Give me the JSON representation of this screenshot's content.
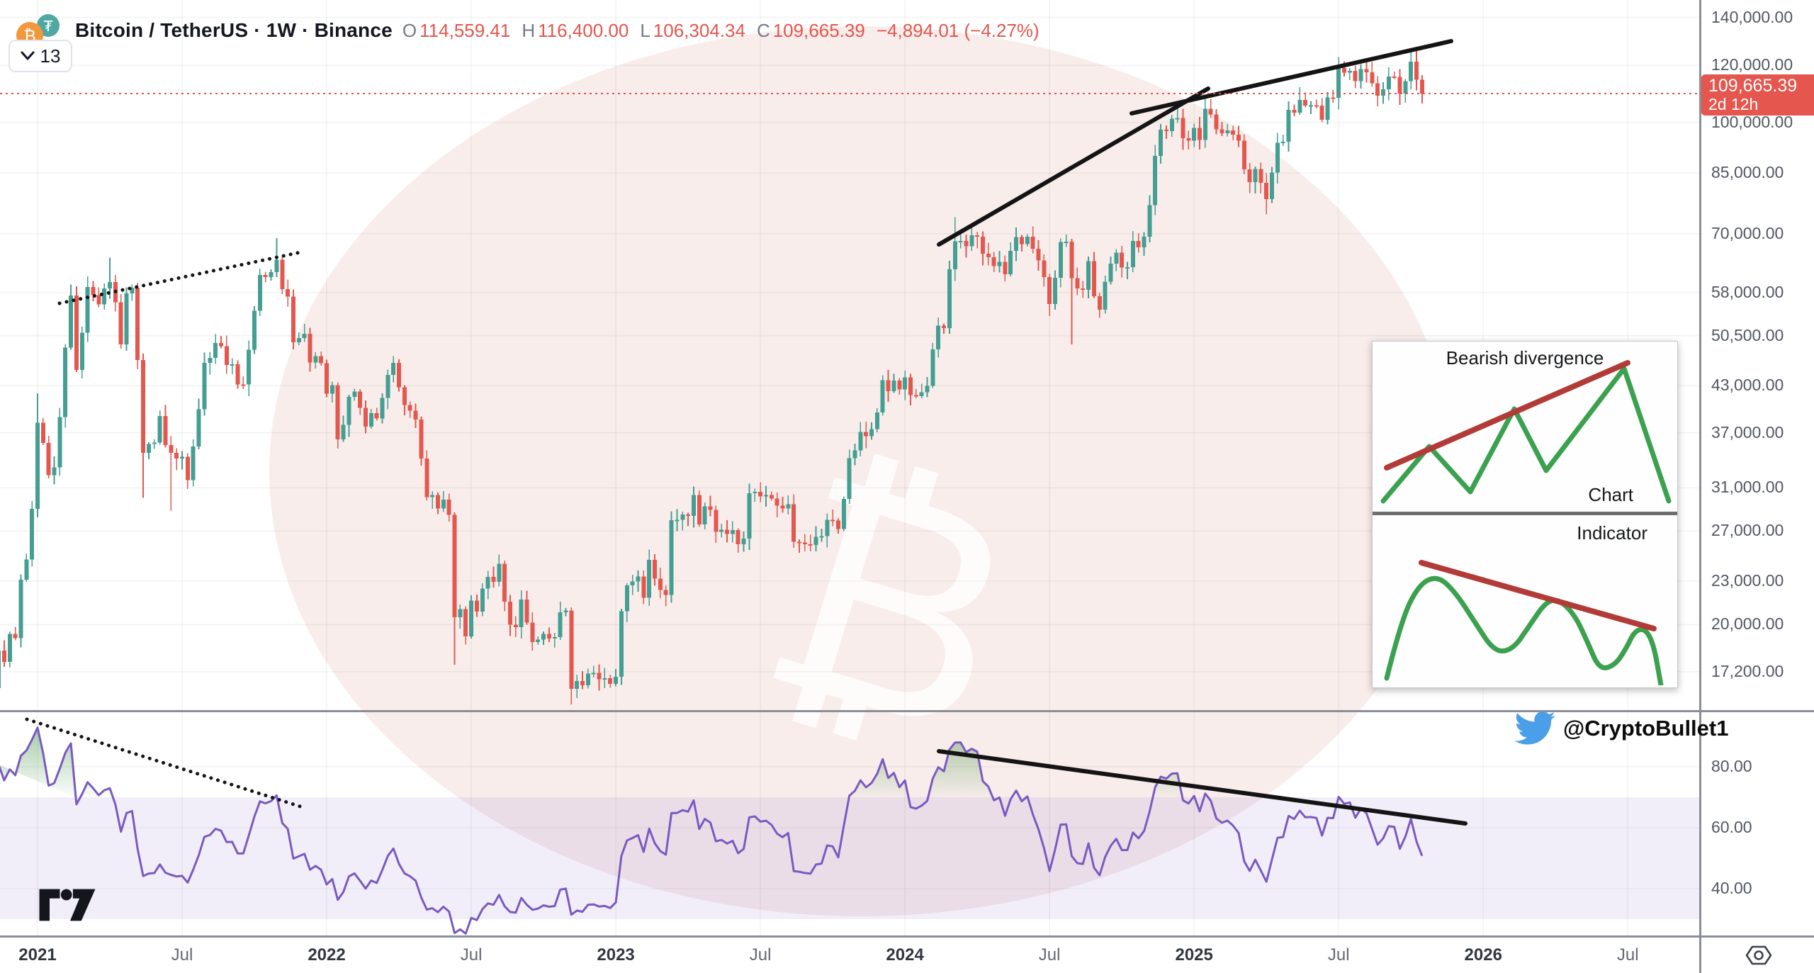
{
  "header": {
    "symbol_title": "Bitcoin / TetherUS · 1W · Binance",
    "ohlc": {
      "o_label": "O",
      "o": "114,559.41",
      "h_label": "H",
      "h": "116,400.00",
      "l_label": "L",
      "l": "106,304.34",
      "c_label": "C",
      "c": "109,665.39",
      "change": "−4,894.01 (−4.27%)"
    }
  },
  "toolbar": {
    "hidden_indicators_count": "13"
  },
  "price_axis": {
    "labels": [
      {
        "text": "140,000.00",
        "value": 140000
      },
      {
        "text": "120,000.00",
        "value": 120000
      },
      {
        "text": "100,000.00",
        "value": 100000
      },
      {
        "text": "85,000.00",
        "value": 85000
      },
      {
        "text": "70,000.00",
        "value": 70000
      },
      {
        "text": "58,000.00",
        "value": 58000
      },
      {
        "text": "50,500.00",
        "value": 50500
      },
      {
        "text": "43,000.00",
        "value": 43000
      },
      {
        "text": "37,000.00",
        "value": 37000
      },
      {
        "text": "31,000.00",
        "value": 31000
      },
      {
        "text": "27,000.00",
        "value": 27000
      },
      {
        "text": "23,000.00",
        "value": 23000
      },
      {
        "text": "20,000.00",
        "value": 20000
      },
      {
        "text": "17,200.00",
        "value": 17200
      }
    ],
    "last_price_badge": {
      "price": "109,665.39",
      "countdown": "2d 12h",
      "value": 109665.39
    }
  },
  "rsi_axis": {
    "labels": [
      {
        "text": "80.00",
        "value": 80
      },
      {
        "text": "60.00",
        "value": 60
      },
      {
        "text": "40.00",
        "value": 40
      }
    ],
    "band": [
      30,
      70
    ]
  },
  "time_axis": {
    "ticks": [
      {
        "label": "2021",
        "week": 7,
        "year": true
      },
      {
        "label": "Jul",
        "week": 33,
        "year": false
      },
      {
        "label": "2022",
        "week": 59,
        "year": true
      },
      {
        "label": "Jul",
        "week": 85,
        "year": false
      },
      {
        "label": "2023",
        "week": 111,
        "year": true
      },
      {
        "label": "Jul",
        "week": 137,
        "year": false
      },
      {
        "label": "2024",
        "week": 163,
        "year": true
      },
      {
        "label": "Jul",
        "week": 189,
        "year": false
      },
      {
        "label": "2025",
        "week": 215,
        "year": true
      },
      {
        "label": "Jul",
        "week": 241,
        "year": false
      },
      {
        "label": "2026",
        "week": 267,
        "year": true
      },
      {
        "label": "Jul",
        "week": 293,
        "year": false
      }
    ]
  },
  "chart_data": {
    "type": "candlestick",
    "title": "Bitcoin / TetherUS weekly with oscillator pane",
    "symbol": "Bitcoin / TetherUS",
    "interval": "1W",
    "exchange": "Binance",
    "price_scale": "logarithmic",
    "ylim": [
      15000,
      145000
    ],
    "weekly_closes_pre": [
      11900,
      11400,
      10220,
      10540,
      10950,
      10670,
      11080,
      11360,
      11750,
      13120,
      13030,
      13780,
      15480,
      16320
    ],
    "weekly_closes": [
      18410,
      17740,
      19420,
      19160,
      23110,
      24650,
      28990,
      38190,
      35820,
      32280,
      33110,
      38880,
      48580,
      57410,
      45240,
      50970,
      59020,
      57490,
      55810,
      58750,
      59970,
      56220,
      49080,
      57830,
      58870,
      46700,
      34680,
      35670,
      35840,
      39020,
      35580,
      34700,
      34050,
      34240,
      31790,
      35390,
      39860,
      46280,
      47010,
      49290,
      48830,
      45980,
      46060,
      43180,
      43160,
      48240,
      54690,
      61310,
      60890,
      61890,
      64400,
      58620,
      57250,
      49400,
      50110,
      50780,
      46310,
      47290,
      46210,
      41910,
      43090,
      36210,
      37920,
      41500,
      42210,
      40080,
      37710,
      39390,
      38730,
      41340,
      44540,
      46280,
      42780,
      40420,
      39680,
      38590,
      34060,
      30080,
      30310,
      29030,
      29860,
      28420,
      20470,
      21030,
      19270,
      21590,
      20860,
      22460,
      23310,
      22950,
      24310,
      21530,
      19990,
      19830,
      21680,
      20130,
      18920,
      19060,
      19420,
      19140,
      19210,
      20810,
      20920,
      16290,
      16690,
      16460,
      17090,
      17130,
      16790,
      16840,
      16540,
      16930,
      20880,
      22680,
      22980,
      23330,
      21790,
      24610,
      23180,
      22360,
      21990,
      27960,
      27970,
      28460,
      28330,
      30290,
      27590,
      29230,
      28880,
      26930,
      27120,
      26750,
      27070,
      25870,
      26340,
      30480,
      30620,
      30170,
      30290,
      29970,
      29280,
      29010,
      29420,
      26070,
      26010,
      25890,
      25830,
      26510,
      26570,
      27980,
      27920,
      27160,
      29920,
      34090,
      34960,
      37070,
      36570,
      37440,
      39460,
      43790,
      42280,
      43710,
      42510,
      44180,
      41720,
      41580,
      42120,
      42990,
      48290,
      52120,
      51730,
      62440,
      68310,
      68390,
      67210,
      69630,
      69290,
      65660,
      64940,
      63110,
      63980,
      61480,
      66270,
      69270,
      67730,
      69310,
      66680,
      64260,
      60890,
      55850,
      60790,
      68150,
      68260,
      60680,
      58710,
      58480,
      64090,
      57310,
      54860,
      59990,
      63570,
      65870,
      62820,
      62850,
      68390,
      66970,
      69360,
      76680,
      89840,
      97690,
      97220,
      101160,
      101370,
      95060,
      94270,
      98290,
      94520,
      104460,
      102580,
      97750,
      96530,
      97460,
      96180,
      94290,
      85970,
      82590,
      86090,
      82410,
      78210,
      85170,
      93710,
      94030,
      104060,
      103120,
      107450,
      105570,
      105690,
      105470,
      100880,
      108260,
      108170,
      119080,
      117280,
      117960,
      114170,
      118560,
      117370,
      113360,
      108880,
      111160,
      115880,
      115660,
      109680,
      114060,
      121470,
      114590,
      109665.39
    ],
    "wick_overrides": {
      "7": [
        41990,
        28210
      ],
      "20": [
        64860,
        null
      ],
      "26": [
        null,
        30010
      ],
      "31": [
        null,
        28820
      ],
      "50": [
        69000,
        null
      ],
      "82": [
        null,
        17590
      ],
      "103": [
        null,
        15480
      ],
      "172": [
        73790,
        null
      ],
      "193": [
        null,
        49110
      ],
      "217": [
        109360,
        null
      ],
      "228": [
        null,
        74430
      ],
      "234": [
        111980,
        null
      ],
      "241": [
        123230,
        null
      ],
      "254": [
        126190,
        null
      ],
      "256": [
        116400,
        106304.34
      ]
    },
    "last_candle": {
      "open": 114559.41,
      "high": 116400.0,
      "low": 106304.34,
      "close": 109665.39
    },
    "oscillator": {
      "length": 14,
      "overbought": 70,
      "oversold": 30,
      "axis_levels": [
        80,
        60,
        40
      ]
    }
  },
  "annotations": {
    "price_dotted_trendline": [
      84,
      428,
      424,
      356
    ],
    "price_solid_trendline_a": [
      1325,
      345,
      1705,
      125
    ],
    "price_solid_trendline_b": [
      1597,
      160,
      2048,
      58
    ],
    "rsi_dotted_trendline": [
      38,
      1015,
      430,
      1140
    ],
    "rsi_solid_trendline": [
      1325,
      1060,
      2068,
      1162
    ]
  },
  "inset": {
    "title": "Bearish divergence",
    "chart_label": "Chart",
    "indicator_label": "Indicator",
    "price_zigzag": [
      [
        15,
        225
      ],
      [
        80,
        148
      ],
      [
        138,
        212
      ],
      [
        200,
        95
      ],
      [
        245,
        182
      ],
      [
        355,
        38
      ],
      [
        418,
        225
      ]
    ],
    "price_trendline": [
      [
        20,
        178
      ],
      [
        360,
        30
      ]
    ],
    "indicator_curve": [
      [
        20,
        230
      ],
      [
        40,
        150
      ],
      [
        65,
        98
      ],
      [
        92,
        85
      ],
      [
        118,
        110
      ],
      [
        145,
        152
      ],
      [
        172,
        193
      ],
      [
        198,
        190
      ],
      [
        222,
        155
      ],
      [
        244,
        123
      ],
      [
        262,
        118
      ],
      [
        285,
        140
      ],
      [
        303,
        178
      ],
      [
        320,
        218
      ],
      [
        342,
        212
      ],
      [
        358,
        188
      ],
      [
        370,
        163
      ],
      [
        385,
        160
      ],
      [
        397,
        183
      ],
      [
        407,
        240
      ]
    ],
    "indicator_trendline": [
      [
        69,
        67
      ],
      [
        397,
        160
      ]
    ],
    "green": "#3ba14f",
    "red": "#b23b37"
  },
  "social": {
    "twitter_handle": "@CryptoBullet1",
    "twitter_blue": "#4a9fe8"
  },
  "colors": {
    "up": "#459e92",
    "down": "#e4574f",
    "last_price": "#e4564e",
    "rsi_line": "#7a5ac0",
    "rsi_band": "rgba(126,87,194,0.10)",
    "grid": "rgba(42,46,57,0.06)",
    "watermark_pink": "#f8edeb",
    "trend_black": "#141414"
  }
}
